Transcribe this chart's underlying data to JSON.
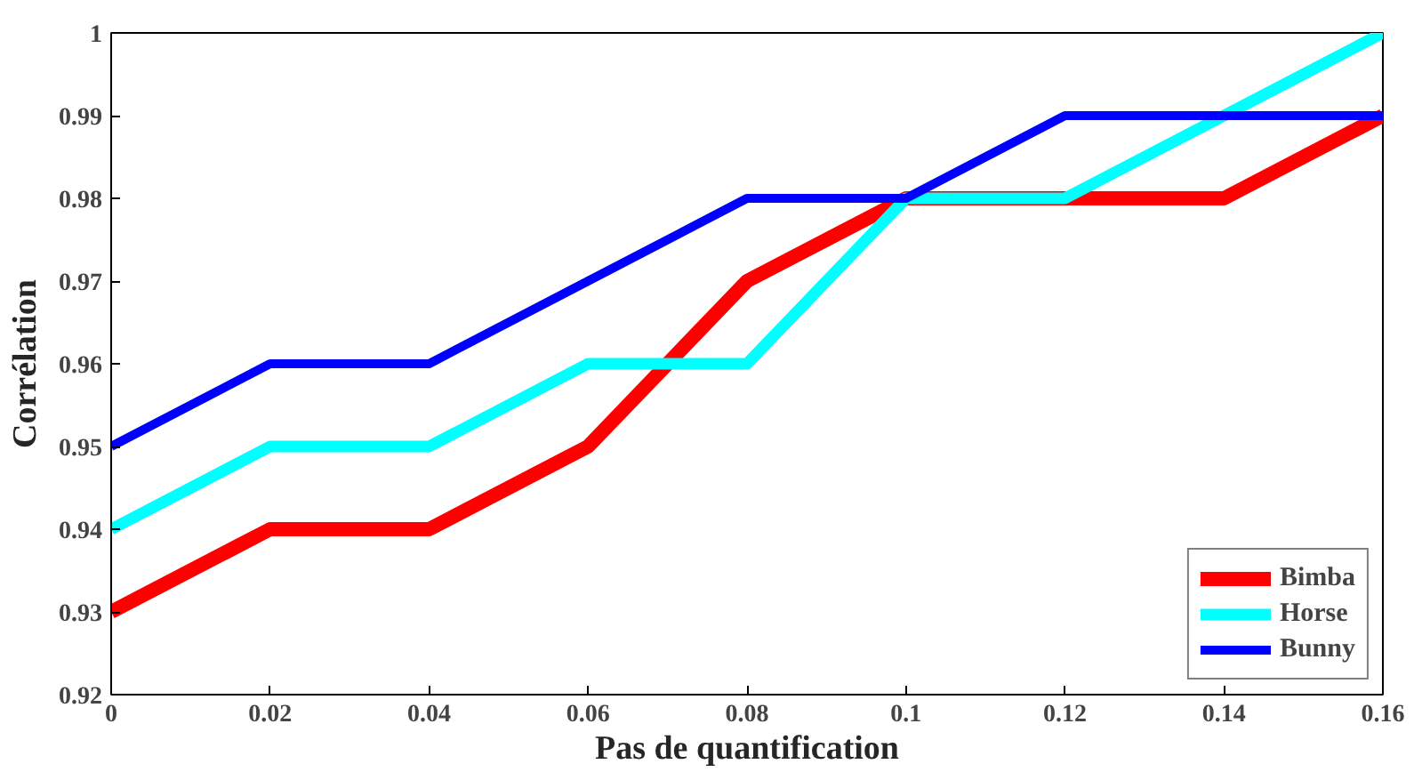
{
  "chart_data": {
    "type": "line",
    "xlabel": "Pas de quantification",
    "ylabel": "Corrélation",
    "x": [
      0,
      0.02,
      0.04,
      0.06,
      0.08,
      0.1,
      0.12,
      0.14,
      0.16
    ],
    "series": [
      {
        "name": "Bimba",
        "color": "#ff0000",
        "values": [
          0.93,
          0.94,
          0.94,
          0.95,
          0.97,
          0.98,
          0.98,
          0.98,
          0.99
        ]
      },
      {
        "name": "Horse",
        "color": "#00ffff",
        "values": [
          0.94,
          0.95,
          0.95,
          0.96,
          0.96,
          0.98,
          0.98,
          0.99,
          1.0
        ]
      },
      {
        "name": "Bunny",
        "color": "#0000ff",
        "values": [
          0.95,
          0.96,
          0.96,
          0.97,
          0.98,
          0.98,
          0.99,
          0.99,
          0.99
        ]
      }
    ],
    "xlim": [
      0,
      0.16
    ],
    "ylim": [
      0.92,
      1.0
    ],
    "xticks": [
      0,
      0.02,
      0.04,
      0.06,
      0.08,
      0.1,
      0.12,
      0.14,
      0.16
    ],
    "yticks": [
      0.92,
      0.93,
      0.94,
      0.95,
      0.96,
      0.97,
      0.98,
      0.99,
      1
    ],
    "grid": false,
    "legend": "bottom right",
    "marker": "none",
    "line_style": "solid"
  }
}
